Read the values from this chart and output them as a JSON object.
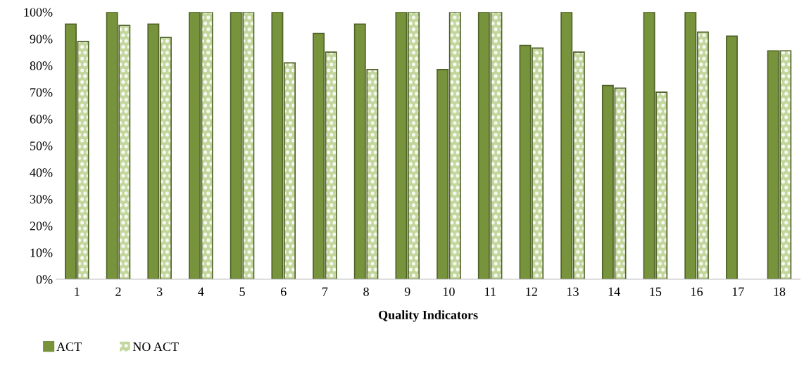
{
  "chart_data": {
    "type": "bar",
    "xlabel": "Quality Indicators",
    "categories": [
      "1",
      "2",
      "3",
      "4",
      "5",
      "6",
      "7",
      "8",
      "9",
      "10",
      "11",
      "12",
      "13",
      "14",
      "15",
      "16",
      "17",
      "18"
    ],
    "series": [
      {
        "name": "ACT",
        "color": "#77933c",
        "values": [
          95.5,
          100,
          95.5,
          100,
          100,
          100,
          92,
          95.5,
          100,
          78.5,
          100,
          87.5,
          100,
          72.5,
          100,
          100,
          91,
          85.5
        ]
      },
      {
        "name": "NO ACT",
        "color": "#c3d69b",
        "values": [
          89,
          95,
          90.5,
          100,
          100,
          81,
          85,
          78.5,
          100,
          100,
          100,
          86.5,
          85,
          71.5,
          70,
          92.5,
          null,
          85.5
        ]
      }
    ],
    "ylim": [
      0,
      100
    ],
    "yticks": [
      {
        "value": 0,
        "label": "0%"
      },
      {
        "value": 10,
        "label": "10%"
      },
      {
        "value": 20,
        "label": "20%"
      },
      {
        "value": 30,
        "label": "30%"
      },
      {
        "value": 40,
        "label": "40%"
      },
      {
        "value": 50,
        "label": "50%"
      },
      {
        "value": 60,
        "label": "60%"
      },
      {
        "value": 70,
        "label": "70%"
      },
      {
        "value": 80,
        "label": "80%"
      },
      {
        "value": 90,
        "label": "90%"
      },
      {
        "value": 100,
        "label": "100%"
      }
    ],
    "grid": false,
    "legend": "bottom left"
  }
}
